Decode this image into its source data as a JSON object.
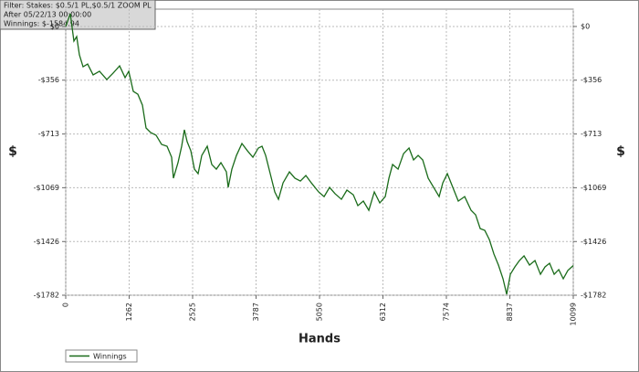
{
  "chart_data": {
    "type": "line",
    "annotations": [
      "Filter: Stakes: $0.5/1 PL,$0.5/1 ZOOM PL",
      "After 05/22/13 00:00:00",
      "Winnings: $-1584.94"
    ],
    "x_label": "Hands",
    "y_label": "$",
    "x": [
      0,
      91,
      163,
      218,
      272,
      345,
      436,
      545,
      672,
      817,
      944,
      1072,
      1181,
      1254,
      1344,
      1435,
      1526,
      1598,
      1689,
      1798,
      1907,
      2016,
      2107,
      2143,
      2234,
      2307,
      2361,
      2416,
      2489,
      2561,
      2634,
      2707,
      2816,
      2906,
      2997,
      3088,
      3197,
      3233,
      3306,
      3397,
      3506,
      3615,
      3724,
      3833,
      3906,
      3978,
      4069,
      4160,
      4233,
      4324,
      4451,
      4560,
      4669,
      4778,
      4887,
      5032,
      5141,
      5250,
      5359,
      5486,
      5595,
      5722,
      5813,
      5922,
      6031,
      6140,
      6249,
      6358,
      6431,
      6504,
      6613,
      6722,
      6831,
      6921,
      7012,
      7103,
      7212,
      7321,
      7430,
      7503,
      7593,
      7702,
      7811,
      7938,
      8066,
      8156,
      8247,
      8338,
      8429,
      8520,
      8610,
      8701,
      8774,
      8847,
      8937,
      9028,
      9119,
      9228,
      9337,
      9446,
      9537,
      9628,
      9719,
      9810,
      9900,
      9991,
      10099
    ],
    "series": [
      {
        "name": "Winnings",
        "color": "#1a6b1a",
        "values": [
          0,
          85,
          -97,
          -67,
          -188,
          -267,
          -249,
          -321,
          -297,
          -352,
          -309,
          -261,
          -339,
          -297,
          -430,
          -449,
          -521,
          -673,
          -703,
          -721,
          -782,
          -794,
          -867,
          -1006,
          -903,
          -794,
          -685,
          -764,
          -824,
          -946,
          -976,
          -855,
          -794,
          -915,
          -946,
          -903,
          -964,
          -1067,
          -946,
          -855,
          -776,
          -824,
          -867,
          -806,
          -794,
          -855,
          -976,
          -1097,
          -1146,
          -1037,
          -964,
          -1006,
          -1025,
          -988,
          -1037,
          -1097,
          -1128,
          -1067,
          -1109,
          -1146,
          -1085,
          -1116,
          -1188,
          -1158,
          -1219,
          -1097,
          -1170,
          -1128,
          -1006,
          -915,
          -946,
          -843,
          -806,
          -885,
          -855,
          -885,
          -1006,
          -1067,
          -1128,
          -1037,
          -976,
          -1067,
          -1158,
          -1128,
          -1219,
          -1249,
          -1340,
          -1352,
          -1413,
          -1509,
          -1582,
          -1673,
          -1776,
          -1643,
          -1594,
          -1552,
          -1521,
          -1582,
          -1552,
          -1643,
          -1594,
          -1570,
          -1643,
          -1612,
          -1673,
          -1618,
          -1585
        ]
      }
    ],
    "xlim": [
      0,
      10099
    ],
    "xticks": [
      0,
      1262,
      2525,
      3787,
      5050,
      6312,
      7574,
      8837,
      10099
    ],
    "ylim": [
      -1782,
      115
    ],
    "yticks": [
      {
        "value": 0,
        "label": "$0"
      },
      {
        "value": -356,
        "label": "-$356"
      },
      {
        "value": -713,
        "label": "-$713"
      },
      {
        "value": -1069,
        "label": "-$1069"
      },
      {
        "value": -1426,
        "label": "-$1426"
      },
      {
        "value": -1782,
        "label": "-$1782"
      }
    ],
    "grid": true,
    "legend": "bottom-left"
  }
}
